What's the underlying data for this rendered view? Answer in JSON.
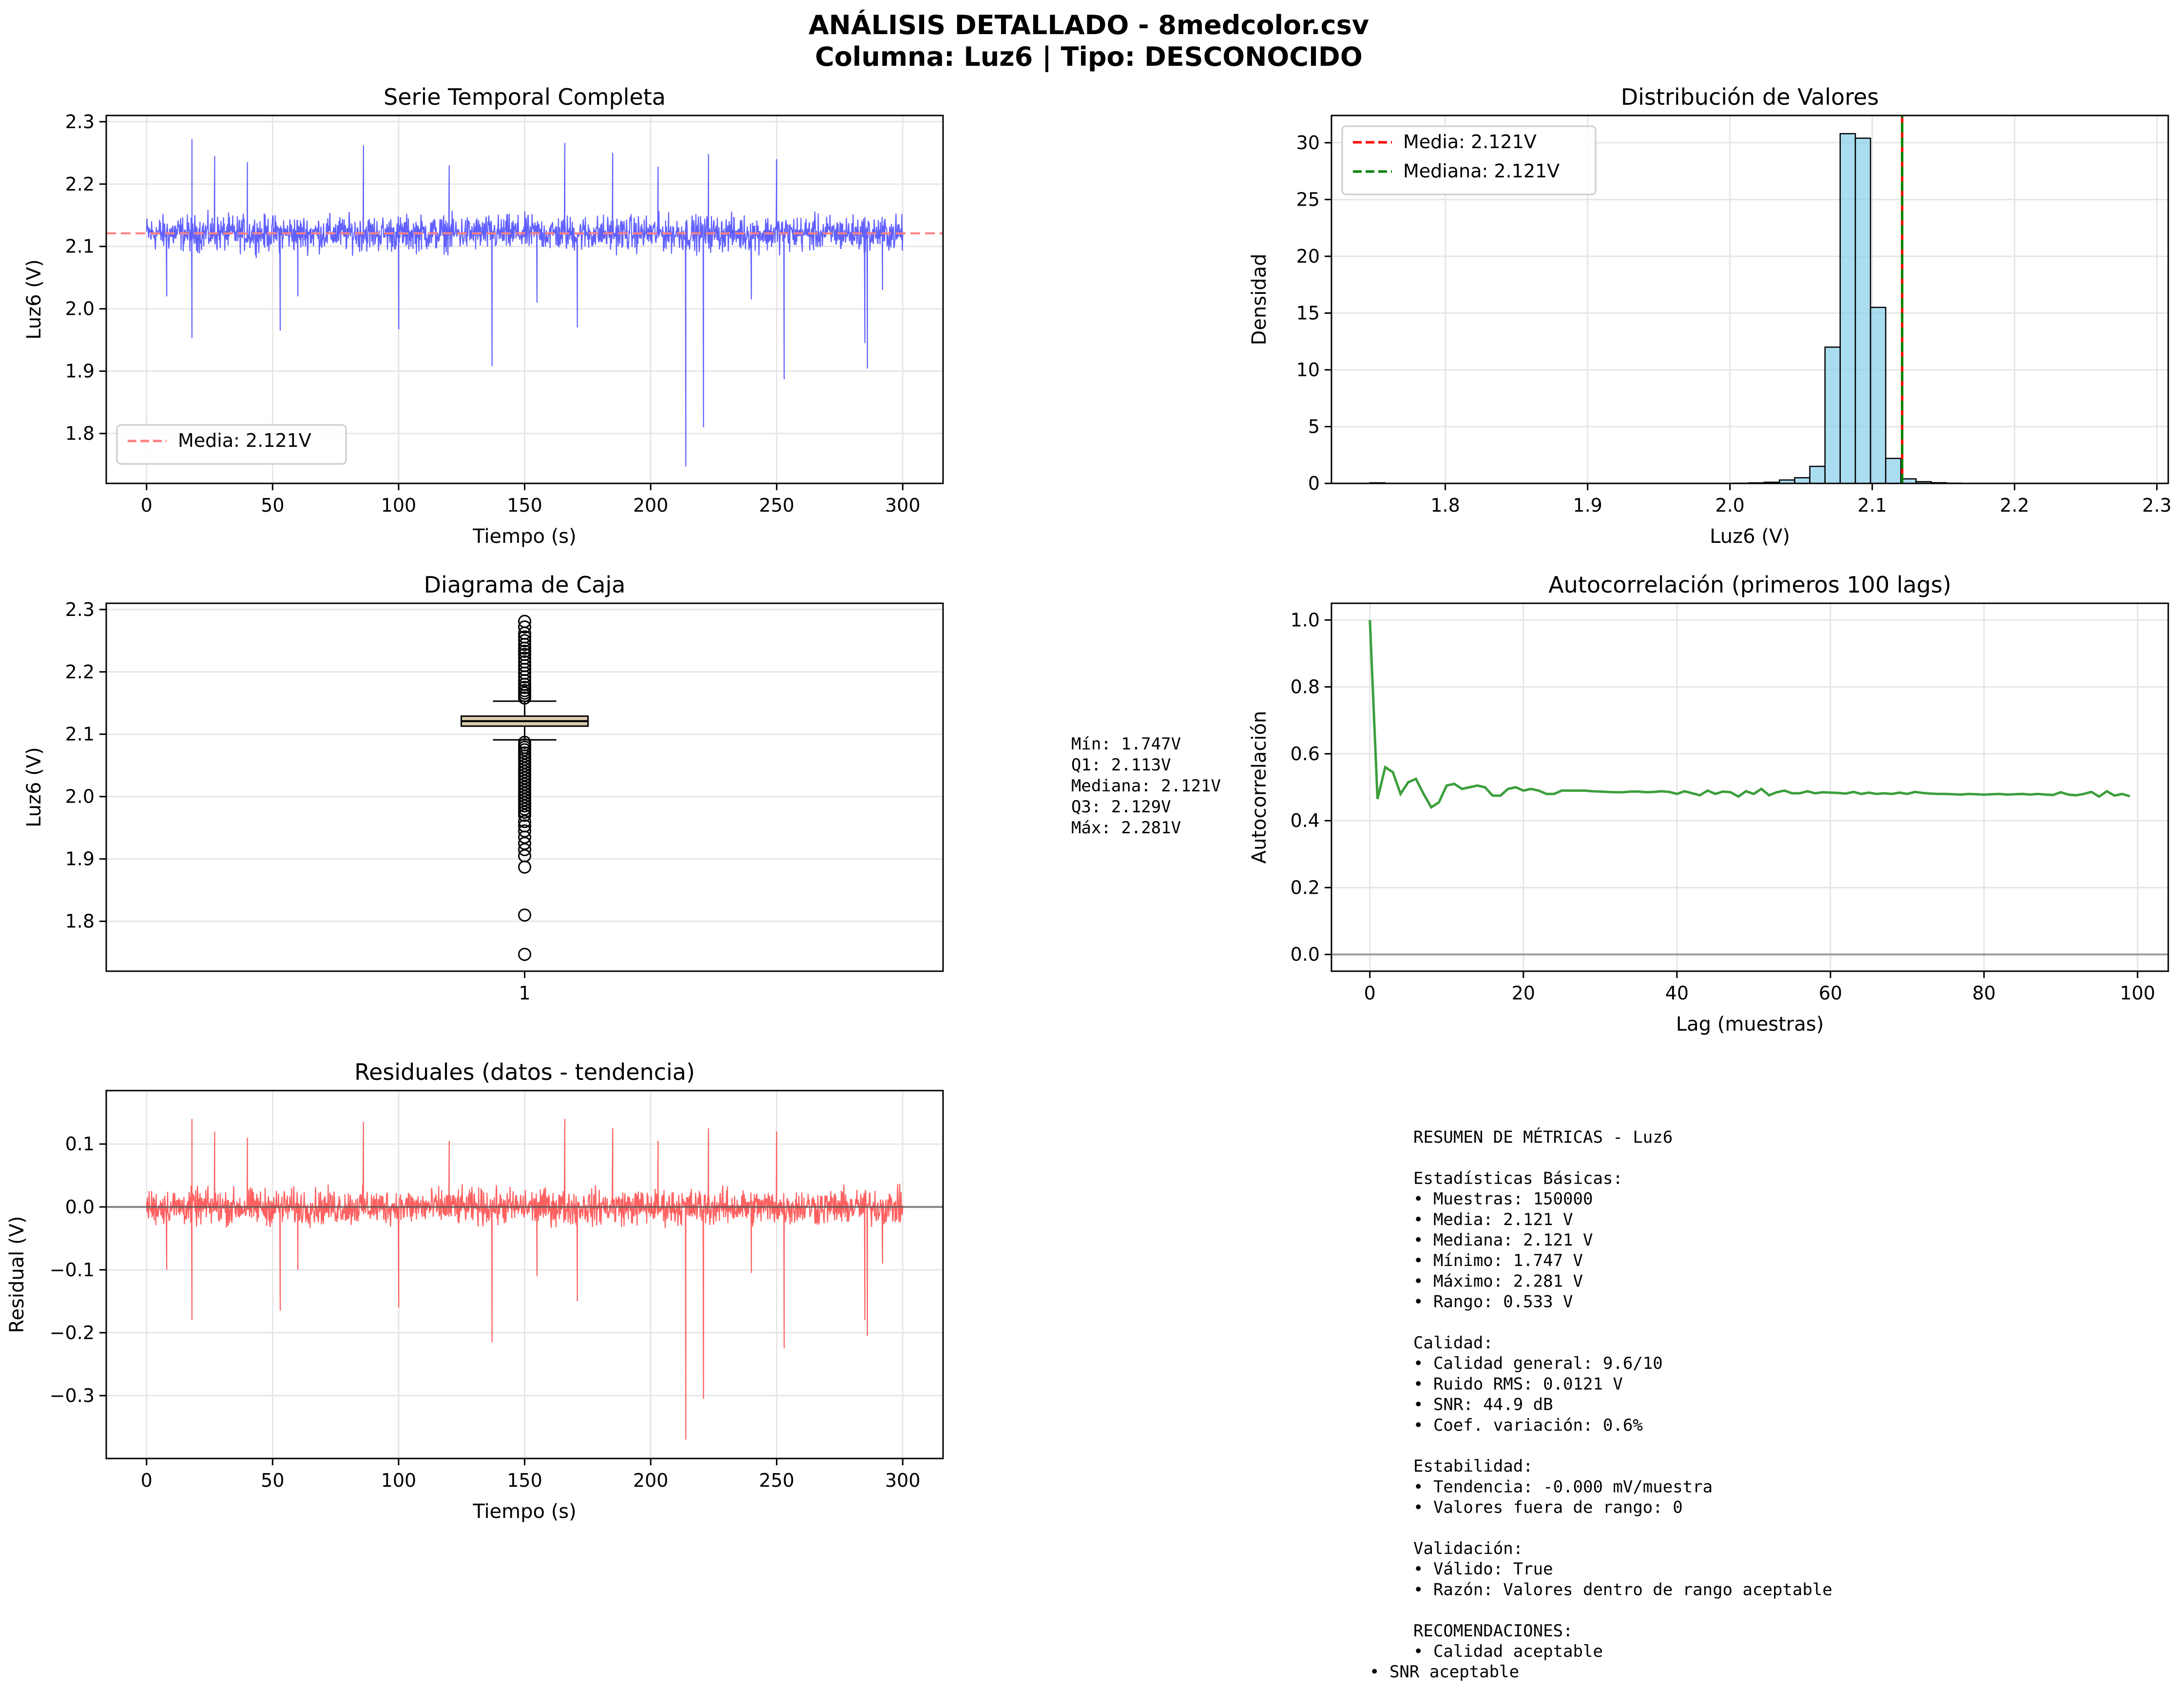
{
  "suptitle": {
    "line1": "ANÁLISIS DETALLADO - 8medcolor.csv",
    "line2": "Columna: Luz6 | Tipo: DESCONOCIDO"
  },
  "colors": {
    "series_blue": "#4444ff",
    "mean_red": "#ff0000",
    "mean_light_red": "#ff8080",
    "median_green": "#008000",
    "residual_red": "#ff4444",
    "acf_green": "#3c9e3c",
    "hist_fill": "#87ceeb",
    "box_fill": "#d9cbaa",
    "grid": "#e6e6e6"
  },
  "box_stats_text": [
    "Mín: 1.747V",
    "Q1: 2.113V",
    "Mediana: 2.121V",
    "Q3: 2.129V",
    "Máx: 2.281V"
  ],
  "summary_text": [
    "RESUMEN DE MÉTRICAS - Luz6",
    "",
    "Estadísticas Básicas:",
    "• Muestras: 150000",
    "• Media: 2.121 V",
    "• Mediana: 2.121 V",
    "• Mínimo: 1.747 V",
    "• Máximo: 2.281 V",
    "• Rango: 0.533 V",
    "",
    "Calidad:",
    "• Calidad general: 9.6/10",
    "• Ruido RMS: 0.0121 V",
    "• SNR: 44.9 dB",
    "• Coef. variación: 0.6%",
    "",
    "Estabilidad:",
    "• Tendencia: -0.000 mV/muestra",
    "• Valores fuera de rango: 0",
    "",
    "Validación:",
    "• Válido: True",
    "• Razón: Valores dentro de rango aceptable",
    "",
    "RECOMENDACIONES:",
    "• Calidad aceptable"
  ],
  "summary_last_line": "• SNR aceptable",
  "chart_data": [
    {
      "id": "timeseries",
      "type": "line",
      "title": "Serie Temporal Completa",
      "xlabel": "Tiempo (s)",
      "ylabel": "Luz6 (V)",
      "xlim": [
        -16,
        316
      ],
      "ylim": [
        1.72,
        2.31
      ],
      "xticks": [
        0,
        50,
        100,
        150,
        200,
        250,
        300
      ],
      "yticks": [
        1.8,
        1.9,
        2.0,
        2.1,
        2.2,
        2.3
      ],
      "grid": true,
      "legend": {
        "loc": "lower left",
        "entries": [
          "Media: 2.121V"
        ]
      },
      "mean": 2.121,
      "band": {
        "center": 2.121,
        "half_width": 0.04,
        "x_start": 0,
        "x_end": 300
      },
      "spikes": [
        [
          18,
          1.953
        ],
        [
          18,
          2.272
        ],
        [
          27,
          2.245
        ],
        [
          53,
          1.965
        ],
        [
          86,
          2.262
        ],
        [
          100,
          1.967
        ],
        [
          137,
          1.908
        ],
        [
          166,
          2.266
        ],
        [
          171,
          1.97
        ],
        [
          185,
          2.25
        ],
        [
          214,
          1.747
        ],
        [
          221,
          1.81
        ],
        [
          223,
          2.248
        ],
        [
          250,
          2.24
        ],
        [
          253,
          1.887
        ],
        [
          285,
          1.945
        ],
        [
          286,
          1.904
        ],
        [
          292,
          2.03
        ],
        [
          40,
          2.235
        ],
        [
          120,
          2.23
        ],
        [
          203,
          2.228
        ],
        [
          60,
          2.02
        ],
        [
          155,
          2.01
        ],
        [
          240,
          2.015
        ],
        [
          8,
          2.02
        ]
      ]
    },
    {
      "id": "histogram",
      "type": "bar",
      "title": "Distribución de Valores",
      "xlabel": "Luz6 (V)",
      "ylabel": "Densidad",
      "xlim": [
        1.72,
        2.308
      ],
      "ylim": [
        0,
        32.4
      ],
      "xticks": [
        1.8,
        1.9,
        2.0,
        2.1,
        2.2,
        2.3
      ],
      "yticks": [
        0,
        5,
        10,
        15,
        20,
        25,
        30
      ],
      "grid": true,
      "legend": {
        "loc": "upper left",
        "entries": [
          "Media: 2.121V",
          "Mediana: 2.121V"
        ]
      },
      "mean": 2.121,
      "median": 2.121,
      "bins": {
        "start": 1.747,
        "width": 0.01066
      },
      "values": [
        0.05,
        0,
        0,
        0,
        0,
        0,
        0,
        0,
        0,
        0,
        0,
        0,
        0,
        0,
        0,
        0,
        0,
        0,
        0,
        0,
        0,
        0,
        0,
        0,
        0.02,
        0.05,
        0.1,
        0.3,
        0.5,
        1.5,
        12.0,
        30.8,
        30.4,
        15.5,
        2.2,
        0.4,
        0.15,
        0.06,
        0.02,
        0.01,
        0,
        0,
        0,
        0,
        0,
        0,
        0,
        0,
        0,
        0.01
      ]
    },
    {
      "id": "boxplot",
      "type": "box",
      "title": "Diagrama de Caja",
      "ylabel": "Luz6 (V)",
      "xticks": [
        "1"
      ],
      "ylim": [
        1.72,
        2.31
      ],
      "yticks": [
        1.8,
        1.9,
        2.0,
        2.1,
        2.2,
        2.3
      ],
      "grid": true,
      "q1": 2.113,
      "median": 2.121,
      "q3": 2.129,
      "whisker_low": 2.091,
      "whisker_high": 2.153,
      "outliers_high": [
        2.158,
        2.162,
        2.166,
        2.17,
        2.175,
        2.18,
        2.186,
        2.192,
        2.198,
        2.204,
        2.21,
        2.216,
        2.222,
        2.228,
        2.233,
        2.238,
        2.244,
        2.25,
        2.256,
        2.262,
        2.272,
        2.281
      ],
      "outliers_low": [
        2.087,
        2.083,
        2.079,
        2.075,
        2.07,
        2.065,
        2.06,
        2.055,
        2.05,
        2.045,
        2.04,
        2.035,
        2.03,
        2.025,
        2.02,
        2.015,
        2.01,
        2.005,
        2.0,
        1.995,
        1.99,
        1.985,
        1.98,
        1.975,
        1.97,
        1.96,
        1.953,
        1.945,
        1.935,
        1.925,
        1.915,
        1.905,
        1.887,
        1.81,
        1.747
      ]
    },
    {
      "id": "autocorrelation",
      "type": "line",
      "title": "Autocorrelación (primeros 100 lags)",
      "xlabel": "Lag (muestras)",
      "ylabel": "Autocorrelación",
      "xlim": [
        -5,
        104
      ],
      "ylim": [
        -0.05,
        1.05
      ],
      "xticks": [
        0,
        20,
        40,
        60,
        80,
        100
      ],
      "yticks": [
        0.0,
        0.2,
        0.4,
        0.6,
        0.8,
        1.0
      ],
      "grid": true,
      "values": [
        1.0,
        0.465,
        0.56,
        0.545,
        0.48,
        0.515,
        0.525,
        0.48,
        0.44,
        0.455,
        0.505,
        0.51,
        0.495,
        0.5,
        0.505,
        0.5,
        0.475,
        0.475,
        0.495,
        0.5,
        0.49,
        0.495,
        0.49,
        0.48,
        0.48,
        0.49,
        0.49,
        0.49,
        0.49,
        0.488,
        0.487,
        0.486,
        0.485,
        0.485,
        0.487,
        0.487,
        0.485,
        0.486,
        0.488,
        0.486,
        0.48,
        0.488,
        0.482,
        0.476,
        0.49,
        0.48,
        0.487,
        0.485,
        0.472,
        0.488,
        0.48,
        0.495,
        0.476,
        0.485,
        0.49,
        0.482,
        0.482,
        0.488,
        0.482,
        0.485,
        0.484,
        0.483,
        0.481,
        0.486,
        0.48,
        0.484,
        0.48,
        0.482,
        0.48,
        0.484,
        0.48,
        0.486,
        0.483,
        0.481,
        0.48,
        0.48,
        0.479,
        0.478,
        0.48,
        0.479,
        0.478,
        0.479,
        0.48,
        0.478,
        0.479,
        0.48,
        0.478,
        0.48,
        0.478,
        0.477,
        0.485,
        0.478,
        0.476,
        0.48,
        0.486,
        0.472,
        0.488,
        0.475,
        0.48,
        0.473
      ],
      "baseline": 0.0
    },
    {
      "id": "residuals",
      "type": "line",
      "title": "Residuales (datos - tendencia)",
      "xlabel": "Tiempo (s)",
      "ylabel": "Residual (V)",
      "xlim": [
        -16,
        316
      ],
      "ylim": [
        -0.4,
        0.185
      ],
      "xticks": [
        0,
        50,
        100,
        150,
        200,
        250,
        300
      ],
      "yticks": [
        -0.3,
        -0.2,
        -0.1,
        0.0,
        0.1
      ],
      "grid": true,
      "baseline": 0.0,
      "band": {
        "center": 0.0,
        "half_width": 0.04,
        "x_start": 0,
        "x_end": 300
      },
      "spikes": [
        [
          18,
          -0.18
        ],
        [
          18,
          0.14
        ],
        [
          27,
          0.12
        ],
        [
          53,
          -0.165
        ],
        [
          86,
          0.135
        ],
        [
          100,
          -0.16
        ],
        [
          137,
          -0.215
        ],
        [
          166,
          0.14
        ],
        [
          171,
          -0.15
        ],
        [
          185,
          0.125
        ],
        [
          214,
          -0.37
        ],
        [
          221,
          -0.305
        ],
        [
          223,
          0.125
        ],
        [
          250,
          0.12
        ],
        [
          253,
          -0.225
        ],
        [
          285,
          -0.18
        ],
        [
          286,
          -0.205
        ],
        [
          292,
          -0.09
        ],
        [
          40,
          0.11
        ],
        [
          120,
          0.105
        ],
        [
          203,
          0.105
        ],
        [
          60,
          -0.1
        ],
        [
          155,
          -0.11
        ],
        [
          240,
          -0.105
        ],
        [
          8,
          -0.1
        ]
      ]
    }
  ]
}
